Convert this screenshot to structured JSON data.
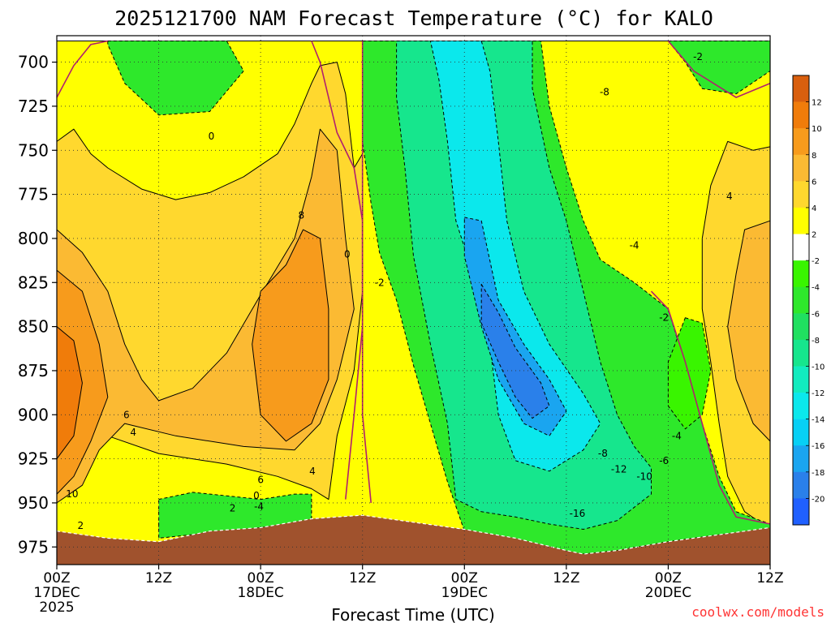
{
  "chart_data": {
    "type": "heatmap",
    "title": "2025121700 NAM Forecast Temperature (°C) for KALO",
    "xlabel": "Forecast Time (UTC)",
    "ylabel": "",
    "credit": "coolwx.com/models",
    "x_unit": "forecast hours",
    "xlim": [
      0,
      84
    ],
    "ylim": [
      985,
      685
    ],
    "y_ticks": [
      700,
      725,
      750,
      775,
      800,
      825,
      850,
      875,
      900,
      925,
      950,
      975
    ],
    "x_ticks": [
      {
        "hour": 0,
        "label": "00Z",
        "date": "17DEC",
        "year": "2025"
      },
      {
        "hour": 12,
        "label": "12Z",
        "date": "",
        "year": ""
      },
      {
        "hour": 24,
        "label": "00Z",
        "date": "18DEC",
        "year": ""
      },
      {
        "hour": 36,
        "label": "12Z",
        "date": "",
        "year": ""
      },
      {
        "hour": 48,
        "label": "00Z",
        "date": "19DEC",
        "year": ""
      },
      {
        "hour": 60,
        "label": "12Z",
        "date": "",
        "year": ""
      },
      {
        "hour": 72,
        "label": "00Z",
        "date": "20DEC",
        "year": ""
      },
      {
        "hour": 84,
        "label": "12Z",
        "date": "",
        "year": ""
      }
    ],
    "colorbar_labels": [
      12,
      10,
      8,
      6,
      4,
      2,
      -2,
      -4,
      -6,
      -8,
      -10,
      -12,
      -14,
      -16,
      -18,
      -20
    ],
    "colorbar_colors": [
      "#d95f0e",
      "#f07c0a",
      "#f79b1c",
      "#fbba33",
      "#ffd82e",
      "#ffff00",
      "#ffffff",
      "#39f500",
      "#2ee82b",
      "#20e060",
      "#16e68d",
      "#12ecbf",
      "#0be8ec",
      "#07d0f5",
      "#1aa5f0",
      "#2a80ea",
      "#2060ff"
    ],
    "contour_labels": [
      {
        "value": "0",
        "hour": 18.2,
        "p": 742
      },
      {
        "value": "8",
        "hour": 28.8,
        "p": 787
      },
      {
        "value": "0",
        "hour": 34.2,
        "p": 809
      },
      {
        "value": "-2",
        "hour": 38.0,
        "p": 825
      },
      {
        "value": "-8",
        "hour": 64.5,
        "p": 717
      },
      {
        "value": "-2",
        "hour": 75.5,
        "p": 697
      },
      {
        "value": "4",
        "hour": 79.2,
        "p": 776
      },
      {
        "value": "-4",
        "hour": 68.0,
        "p": 804
      },
      {
        "value": "-2",
        "hour": 71.5,
        "p": 845
      },
      {
        "value": "6",
        "hour": 8.2,
        "p": 900
      },
      {
        "value": "4",
        "hour": 9.0,
        "p": 910
      },
      {
        "value": "6",
        "hour": 24.0,
        "p": 937
      },
      {
        "value": "4",
        "hour": 30.1,
        "p": 932
      },
      {
        "value": "0",
        "hour": 23.5,
        "p": 946
      },
      {
        "value": "-4",
        "hour": 23.8,
        "p": 952
      },
      {
        "value": "2",
        "hour": 20.7,
        "p": 953
      },
      {
        "value": "10",
        "hour": 1.8,
        "p": 945
      },
      {
        "value": "2",
        "hour": 2.8,
        "p": 963
      },
      {
        "value": "-8",
        "hour": 64.3,
        "p": 922
      },
      {
        "value": "-12",
        "hour": 66.2,
        "p": 931
      },
      {
        "value": "-10",
        "hour": 69.2,
        "p": 935
      },
      {
        "value": "-6",
        "hour": 71.5,
        "p": 926
      },
      {
        "value": "-4",
        "hour": 73.0,
        "p": 912
      },
      {
        "value": "-16",
        "hour": 61.3,
        "p": 956
      }
    ],
    "surface_pressure": [
      [
        0,
        966
      ],
      [
        6,
        970
      ],
      [
        12,
        972
      ],
      [
        18,
        966
      ],
      [
        24,
        964
      ],
      [
        30,
        959
      ],
      [
        36,
        957
      ],
      [
        42,
        961
      ],
      [
        48,
        965
      ],
      [
        54,
        970
      ],
      [
        60,
        977
      ],
      [
        62,
        979
      ],
      [
        66,
        977
      ],
      [
        72,
        972
      ],
      [
        78,
        968
      ],
      [
        84,
        964
      ]
    ],
    "regions": [
      {
        "value": 2,
        "pts": [
          [
            0,
            688
          ],
          [
            84,
            688
          ],
          [
            84,
            985
          ],
          [
            0,
            985
          ]
        ]
      },
      {
        "value": -4,
        "pts": [
          [
            6,
            688
          ],
          [
            20,
            688
          ],
          [
            22,
            705
          ],
          [
            18,
            728
          ],
          [
            12,
            730
          ],
          [
            8,
            712
          ],
          [
            6,
            690
          ]
        ]
      },
      {
        "value": 4,
        "pts": [
          [
            0,
            745
          ],
          [
            2,
            738
          ],
          [
            4,
            752
          ],
          [
            6,
            760
          ],
          [
            10,
            772
          ],
          [
            14,
            778
          ],
          [
            18,
            774
          ],
          [
            22,
            765
          ],
          [
            26,
            752
          ],
          [
            28,
            735
          ],
          [
            30,
            712
          ],
          [
            31,
            702
          ],
          [
            33,
            700
          ],
          [
            34,
            718
          ],
          [
            35,
            760
          ],
          [
            36,
            752
          ],
          [
            36,
            830
          ],
          [
            35,
            875
          ],
          [
            33,
            912
          ],
          [
            32,
            948
          ],
          [
            30,
            942
          ],
          [
            26,
            935
          ],
          [
            20,
            928
          ],
          [
            12,
            922
          ],
          [
            6,
            912
          ],
          [
            4,
            905
          ],
          [
            2,
            900
          ],
          [
            0,
            902
          ]
        ]
      },
      {
        "value": 6,
        "pts": [
          [
            0,
            795
          ],
          [
            3,
            808
          ],
          [
            6,
            830
          ],
          [
            8,
            860
          ],
          [
            10,
            880
          ],
          [
            12,
            892
          ],
          [
            16,
            885
          ],
          [
            20,
            865
          ],
          [
            24,
            832
          ],
          [
            28,
            800
          ],
          [
            30,
            765
          ],
          [
            31,
            738
          ],
          [
            33,
            750
          ],
          [
            34,
            800
          ],
          [
            35,
            840
          ],
          [
            33,
            880
          ],
          [
            31,
            905
          ],
          [
            28,
            920
          ],
          [
            22,
            918
          ],
          [
            14,
            912
          ],
          [
            8,
            905
          ],
          [
            5,
            920
          ],
          [
            3,
            940
          ],
          [
            0,
            950
          ]
        ]
      },
      {
        "value": 8,
        "pts": [
          [
            0,
            818
          ],
          [
            3,
            830
          ],
          [
            5,
            860
          ],
          [
            6,
            890
          ],
          [
            4,
            915
          ],
          [
            2,
            935
          ],
          [
            0,
            945
          ]
        ]
      },
      {
        "value": 8,
        "pts": [
          [
            24,
            830
          ],
          [
            27,
            815
          ],
          [
            29,
            795
          ],
          [
            31,
            800
          ],
          [
            32,
            840
          ],
          [
            32,
            880
          ],
          [
            30,
            905
          ],
          [
            27,
            915
          ],
          [
            24,
            900
          ],
          [
            23,
            860
          ]
        ]
      },
      {
        "value": 10,
        "pts": [
          [
            0,
            850
          ],
          [
            2,
            858
          ],
          [
            3,
            882
          ],
          [
            2,
            912
          ],
          [
            0,
            925
          ]
        ]
      },
      {
        "value": -4,
        "pts": [
          [
            12,
            948
          ],
          [
            16,
            944
          ],
          [
            20,
            946
          ],
          [
            24,
            948
          ],
          [
            28,
            945
          ],
          [
            30,
            945
          ],
          [
            30,
            960
          ],
          [
            24,
            964
          ],
          [
            18,
            967
          ],
          [
            12,
            970
          ]
        ]
      },
      {
        "value": 4,
        "pts": [
          [
            79,
            745
          ],
          [
            82,
            750
          ],
          [
            84,
            748
          ],
          [
            84,
            965
          ],
          [
            81,
            955
          ],
          [
            79,
            935
          ],
          [
            78,
            905
          ],
          [
            77,
            870
          ],
          [
            76,
            840
          ],
          [
            76,
            800
          ],
          [
            77,
            770
          ]
        ]
      },
      {
        "value": 6,
        "pts": [
          [
            81,
            795
          ],
          [
            84,
            790
          ],
          [
            84,
            915
          ],
          [
            82,
            905
          ],
          [
            80,
            880
          ],
          [
            79,
            850
          ],
          [
            80,
            820
          ]
        ]
      },
      {
        "value": -4,
        "pts": [
          [
            36,
            688
          ],
          [
            57,
            688
          ],
          [
            58,
            725
          ],
          [
            60,
            760
          ],
          [
            62,
            790
          ],
          [
            64,
            812
          ],
          [
            68,
            825
          ],
          [
            72,
            840
          ],
          [
            74,
            872
          ],
          [
            76,
            905
          ],
          [
            78,
            935
          ],
          [
            80,
            955
          ],
          [
            84,
            962
          ],
          [
            84,
            965
          ],
          [
            78,
            968
          ],
          [
            72,
            972
          ],
          [
            66,
            977
          ],
          [
            62,
            979
          ],
          [
            58,
            977
          ],
          [
            52,
            972
          ],
          [
            48,
            966
          ],
          [
            46,
            938
          ],
          [
            44,
            905
          ],
          [
            42,
            872
          ],
          [
            40,
            835
          ],
          [
            38,
            808
          ],
          [
            37,
            780
          ],
          [
            36,
            745
          ]
        ]
      },
      {
        "value": -8,
        "pts": [
          [
            40,
            688
          ],
          [
            56,
            688
          ],
          [
            56,
            715
          ],
          [
            58,
            760
          ],
          [
            60,
            790
          ],
          [
            62,
            830
          ],
          [
            64,
            870
          ],
          [
            66,
            900
          ],
          [
            68,
            918
          ],
          [
            70,
            930
          ],
          [
            70,
            945
          ],
          [
            66,
            960
          ],
          [
            62,
            965
          ],
          [
            58,
            962
          ],
          [
            54,
            958
          ],
          [
            50,
            955
          ],
          [
            47,
            948
          ],
          [
            46,
            905
          ],
          [
            44,
            860
          ],
          [
            42,
            810
          ],
          [
            41,
            760
          ],
          [
            40,
            720
          ]
        ]
      },
      {
        "value": -12,
        "pts": [
          [
            44,
            688
          ],
          [
            50,
            688
          ],
          [
            51,
            705
          ],
          [
            52,
            745
          ],
          [
            53,
            790
          ],
          [
            55,
            830
          ],
          [
            58,
            860
          ],
          [
            62,
            888
          ],
          [
            64,
            905
          ],
          [
            62,
            920
          ],
          [
            58,
            932
          ],
          [
            54,
            926
          ],
          [
            52,
            900
          ],
          [
            51,
            860
          ],
          [
            49,
            820
          ],
          [
            47,
            790
          ],
          [
            46,
            745
          ],
          [
            45,
            710
          ]
        ]
      },
      {
        "value": -16,
        "pts": [
          [
            48,
            788
          ],
          [
            50,
            790
          ],
          [
            52,
            835
          ],
          [
            55,
            860
          ],
          [
            58,
            880
          ],
          [
            60,
            898
          ],
          [
            58,
            912
          ],
          [
            55,
            905
          ],
          [
            52,
            880
          ],
          [
            50,
            850
          ],
          [
            48,
            810
          ]
        ]
      },
      {
        "value": -18,
        "pts": [
          [
            50,
            826
          ],
          [
            52,
            842
          ],
          [
            54,
            862
          ],
          [
            57,
            882
          ],
          [
            58,
            895
          ],
          [
            56,
            902
          ],
          [
            54,
            890
          ],
          [
            52,
            870
          ],
          [
            50,
            848
          ]
        ]
      },
      {
        "value": -4,
        "pts": [
          [
            72,
            688
          ],
          [
            84,
            688
          ],
          [
            84,
            705
          ],
          [
            80,
            718
          ],
          [
            76,
            715
          ],
          [
            74,
            700
          ]
        ]
      },
      {
        "value": -2,
        "pts": [
          [
            74,
            845
          ],
          [
            76,
            848
          ],
          [
            77,
            875
          ],
          [
            76,
            900
          ],
          [
            74,
            908
          ],
          [
            72,
            895
          ],
          [
            72,
            870
          ]
        ]
      }
    ]
  },
  "palette": {
    "ground": "#a0522d",
    "zero_line": "#b0206e",
    "contour_line": "#000000",
    "background": "#ffffff",
    "credit_color": "#ff3333"
  }
}
